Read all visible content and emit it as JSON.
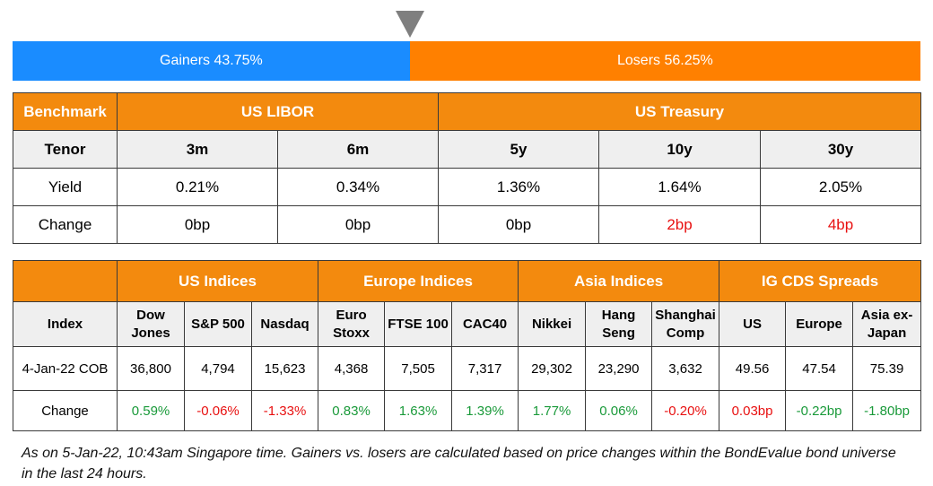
{
  "ratio_bar": {
    "gainers_label": "Gainers 43.75%",
    "losers_label": "Losers 56.25%",
    "gainers_fraction": 0.4375,
    "losers_fraction": 0.5625,
    "gainers_color": "#1a8cff",
    "losers_color": "#ff8000",
    "marker_icon": "triangle-down-icon"
  },
  "rates_table": {
    "header": {
      "benchmark": "Benchmark",
      "libor": "US LIBOR",
      "treasury": "US Treasury"
    },
    "tenor_label": "Tenor",
    "tenors": [
      "3m",
      "6m",
      "5y",
      "10y",
      "30y"
    ],
    "yield_label": "Yield",
    "yields": [
      "0.21%",
      "0.34%",
      "1.36%",
      "1.64%",
      "2.05%"
    ],
    "change_label": "Change",
    "changes": [
      {
        "text": "0bp",
        "tone": "neutral"
      },
      {
        "text": "0bp",
        "tone": "neutral"
      },
      {
        "text": "0bp",
        "tone": "neutral"
      },
      {
        "text": "2bp",
        "tone": "red"
      },
      {
        "text": "4bp",
        "tone": "red"
      }
    ]
  },
  "indices_table": {
    "groups": {
      "us": "US Indices",
      "europe": "Europe Indices",
      "asia": "Asia Indices",
      "cds": "IG CDS Spreads"
    },
    "index_label": "Index",
    "columns": [
      {
        "line1": "Dow",
        "line2": "Jones"
      },
      {
        "line1": "S&P 500",
        "line2": ""
      },
      {
        "line1": "Nasdaq",
        "line2": ""
      },
      {
        "line1": "Euro",
        "line2": "Stoxx"
      },
      {
        "line1": "FTSE 100",
        "line2": ""
      },
      {
        "line1": "CAC40",
        "line2": ""
      },
      {
        "line1": "Nikkei",
        "line2": ""
      },
      {
        "line1": "Hang",
        "line2": "Seng"
      },
      {
        "line1": "Shanghai",
        "line2": "Comp"
      },
      {
        "line1": "US",
        "line2": ""
      },
      {
        "line1": "Europe",
        "line2": ""
      },
      {
        "line1": "Asia ex-",
        "line2": "Japan"
      }
    ],
    "date_label": "4-Jan-22 COB",
    "values": [
      "36,800",
      "4,794",
      "15,623",
      "4,368",
      "7,505",
      "7,317",
      "29,302",
      "23,290",
      "3,632",
      "49.56",
      "47.54",
      "75.39"
    ],
    "change_label": "Change",
    "changes": [
      {
        "text": "0.59%",
        "tone": "green"
      },
      {
        "text": "-0.06%",
        "tone": "red"
      },
      {
        "text": "-1.33%",
        "tone": "red"
      },
      {
        "text": "0.83%",
        "tone": "green"
      },
      {
        "text": "1.63%",
        "tone": "green"
      },
      {
        "text": "1.39%",
        "tone": "green"
      },
      {
        "text": "1.77%",
        "tone": "green"
      },
      {
        "text": "0.06%",
        "tone": "green"
      },
      {
        "text": "-0.20%",
        "tone": "red"
      },
      {
        "text": "0.03bp",
        "tone": "red"
      },
      {
        "text": "-0.22bp",
        "tone": "green"
      },
      {
        "text": "-1.80bp",
        "tone": "green"
      }
    ]
  },
  "footnote": "As on 5-Jan-22, 10:43am Singapore time. Gainers vs. losers are calculated based on price changes within the BondEvalue bond universe in the last 24 hours."
}
